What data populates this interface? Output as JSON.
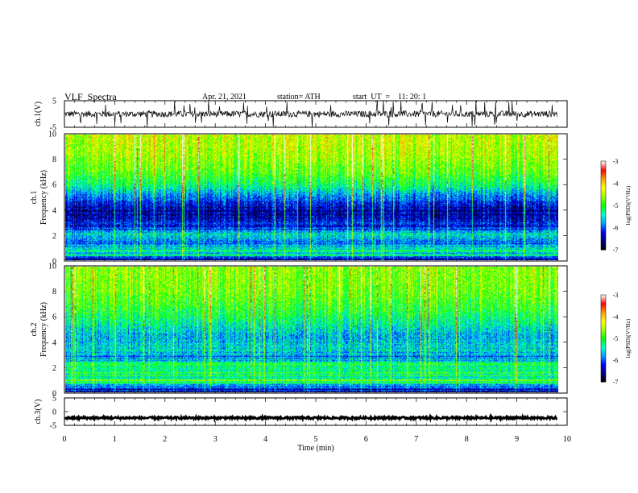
{
  "header": {
    "title": "VLF  Spectra",
    "date": "Apr. 21, 2021",
    "station": "station= ATH",
    "start_ut": "start  UT  =    11: 20: 1"
  },
  "chart_data": [
    {
      "type": "line",
      "panel": "ch1-waveform",
      "ylabel": "ch.1(V)",
      "ylim": [
        -5,
        5
      ],
      "yticks": [
        "5",
        "-5"
      ],
      "xlim": [
        0,
        10
      ],
      "x_extent": [
        0,
        9.8
      ],
      "series": [
        {
          "baseline": 0,
          "typical_amplitude": 1.2,
          "spike_amplitude": 5,
          "color": "#000000"
        }
      ]
    },
    {
      "type": "heatmap",
      "panel": "ch1-spectrogram",
      "ylabel": [
        "ch.1",
        "Frequency  (kHz)"
      ],
      "ylim": [
        0,
        10
      ],
      "yticks": [
        "0",
        "2",
        "4",
        "6",
        "8",
        "10"
      ],
      "xlim": [
        0,
        10
      ],
      "x_extent": [
        0,
        9.8
      ],
      "band_profile_khz": [
        {
          "f": 0.0,
          "v": -6.8
        },
        {
          "f": 0.3,
          "v": -5.5
        },
        {
          "f": 0.7,
          "v": -5.4
        },
        {
          "f": 1.1,
          "v": -5.9
        },
        {
          "f": 1.6,
          "v": -5.7
        },
        {
          "f": 2.1,
          "v": -5.5
        },
        {
          "f": 2.5,
          "v": -6.1
        },
        {
          "f": 3.0,
          "v": -6.3
        },
        {
          "f": 4.0,
          "v": -6.5
        },
        {
          "f": 5.0,
          "v": -5.9
        },
        {
          "f": 6.0,
          "v": -5.2
        },
        {
          "f": 7.0,
          "v": -4.8
        },
        {
          "f": 8.5,
          "v": -4.5
        },
        {
          "f": 10.0,
          "v": -4.4
        }
      ],
      "colorbar": {
        "label": "log(PSD)(V²/Hz)",
        "range": [
          -7,
          -3
        ],
        "ticks": [
          "-3",
          "-4",
          "-5",
          "-6",
          "-7"
        ]
      }
    },
    {
      "type": "heatmap",
      "panel": "ch2-spectrogram",
      "ylabel": [
        "ch.2",
        "Frequency  (kHz)"
      ],
      "ylim": [
        0,
        10
      ],
      "yticks": [
        "0",
        "2",
        "4",
        "6",
        "8",
        "10"
      ],
      "xlim": [
        0,
        10
      ],
      "x_extent": [
        0,
        9.8
      ],
      "band_profile_khz": [
        {
          "f": 0.0,
          "v": -6.6
        },
        {
          "f": 0.5,
          "v": -5.6
        },
        {
          "f": 0.9,
          "v": -4.9
        },
        {
          "f": 1.3,
          "v": -5.3
        },
        {
          "f": 1.9,
          "v": -5.0
        },
        {
          "f": 2.4,
          "v": -5.4
        },
        {
          "f": 2.8,
          "v": -5.9
        },
        {
          "f": 3.3,
          "v": -5.5
        },
        {
          "f": 4.5,
          "v": -5.7
        },
        {
          "f": 5.5,
          "v": -5.3
        },
        {
          "f": 6.5,
          "v": -5.0
        },
        {
          "f": 8.0,
          "v": -4.7
        },
        {
          "f": 10.0,
          "v": -4.6
        }
      ],
      "colorbar": {
        "label": "log(PSD)(V²/Hz)",
        "range": [
          -7,
          -3
        ],
        "ticks": [
          "-3",
          "-4",
          "-5",
          "-6",
          "-7"
        ]
      }
    },
    {
      "type": "line",
      "panel": "ch3-waveform",
      "ylabel": "ch.3(V)",
      "ylim": [
        -5,
        5
      ],
      "yticks": [
        "5",
        "0",
        "-5"
      ],
      "xlim": [
        0,
        10
      ],
      "x_extent": [
        0,
        9.8
      ],
      "xticks": [
        "0",
        "1",
        "2",
        "3",
        "4",
        "5",
        "6",
        "7",
        "8",
        "9",
        "10"
      ],
      "xlabel": "Time  (min)",
      "series": [
        {
          "baseline": -2.3,
          "typical_amplitude": 0.4,
          "color": "#000000"
        }
      ]
    }
  ],
  "colors": {
    "colormap": [
      "#000000",
      "#00007a",
      "#0000ff",
      "#00a0ff",
      "#00ffcc",
      "#00ff00",
      "#9cff00",
      "#ffff00",
      "#ffa000",
      "#ff0000",
      "#ffffff"
    ]
  }
}
